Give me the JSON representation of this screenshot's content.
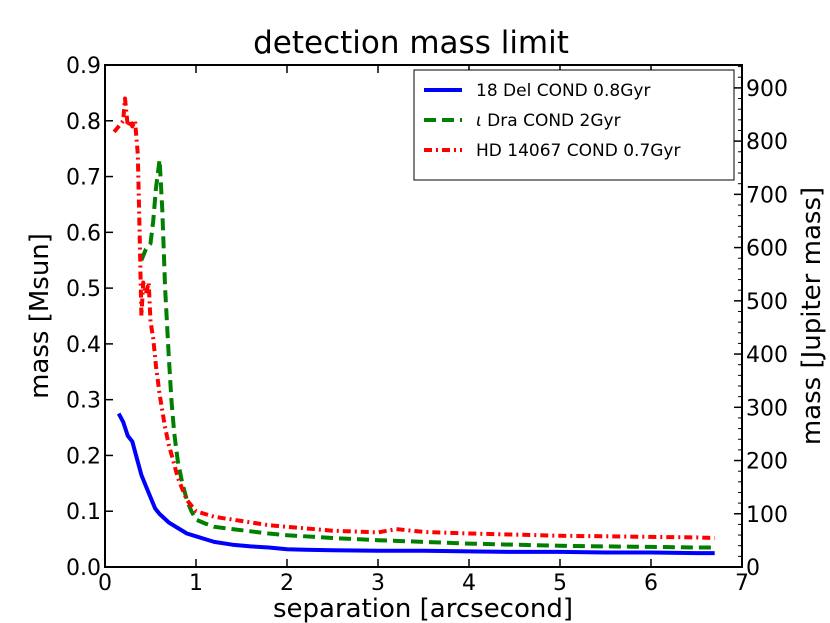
{
  "chart_data": {
    "type": "line",
    "title": "detection mass limit",
    "xlabel": "separation [arcsecond]",
    "ylabel": "mass [Msun]",
    "ylabel_right": "mass [Jupiter mass]",
    "xlim": [
      0,
      7
    ],
    "ylim": [
      0,
      0.9
    ],
    "ylim_right": [
      0,
      943
    ],
    "grid": false,
    "legend_position": "top-right",
    "x_ticks": [
      0,
      1,
      2,
      3,
      4,
      5,
      6,
      7
    ],
    "x_tick_labels": [
      "0",
      "1",
      "2",
      "3",
      "4",
      "5",
      "6",
      "7"
    ],
    "y_ticks": [
      0.0,
      0.1,
      0.2,
      0.3,
      0.4,
      0.5,
      0.6,
      0.7,
      0.8,
      0.9
    ],
    "y_tick_labels": [
      "0.0",
      "0.1",
      "0.2",
      "0.3",
      "0.4",
      "0.5",
      "0.6",
      "0.7",
      "0.8",
      "0.9"
    ],
    "y_right_ticks": [
      0,
      100,
      200,
      300,
      400,
      500,
      600,
      700,
      800,
      900
    ],
    "y_right_tick_labels": [
      "0",
      "100",
      "200",
      "300",
      "400",
      "500",
      "600",
      "700",
      "800",
      "900"
    ],
    "series": [
      {
        "name": "18 Del COND 0.8Gyr",
        "legend_prefix": "",
        "legend_rest": "18 Del COND 0.8Gyr",
        "color": "#0000ff",
        "dash": "solid",
        "x": [
          0.15,
          0.2,
          0.25,
          0.3,
          0.35,
          0.4,
          0.45,
          0.5,
          0.55,
          0.6,
          0.7,
          0.8,
          0.9,
          1.0,
          1.1,
          1.2,
          1.4,
          1.6,
          1.8,
          2.0,
          2.2,
          2.5,
          3.0,
          3.5,
          4.0,
          4.5,
          5.0,
          5.5,
          6.0,
          6.5,
          6.7
        ],
        "y": [
          0.275,
          0.26,
          0.235,
          0.225,
          0.195,
          0.165,
          0.145,
          0.125,
          0.105,
          0.095,
          0.08,
          0.07,
          0.06,
          0.055,
          0.05,
          0.045,
          0.04,
          0.037,
          0.035,
          0.032,
          0.031,
          0.03,
          0.029,
          0.029,
          0.028,
          0.027,
          0.027,
          0.026,
          0.026,
          0.025,
          0.025
        ]
      },
      {
        "name": "ι Dra COND 2Gyr",
        "legend_prefix": "ι",
        "legend_rest": " Dra COND 2Gyr",
        "color": "#007f00",
        "dash": "dashed",
        "x": [
          0.4,
          0.45,
          0.5,
          0.53,
          0.56,
          0.6,
          0.63,
          0.66,
          0.7,
          0.73,
          0.76,
          0.8,
          0.85,
          0.9,
          0.95,
          1.0,
          1.1,
          1.2,
          1.4,
          1.6,
          1.8,
          2.0,
          2.5,
          3.0,
          3.5,
          4.0,
          4.5,
          5.0,
          5.5,
          6.0,
          6.5,
          6.7
        ],
        "y": [
          0.55,
          0.57,
          0.58,
          0.62,
          0.68,
          0.73,
          0.64,
          0.5,
          0.38,
          0.3,
          0.24,
          0.19,
          0.15,
          0.12,
          0.1,
          0.085,
          0.078,
          0.072,
          0.068,
          0.064,
          0.06,
          0.057,
          0.052,
          0.048,
          0.045,
          0.042,
          0.04,
          0.038,
          0.037,
          0.036,
          0.035,
          0.035
        ]
      },
      {
        "name": "HD 14067 COND 0.7Gyr",
        "legend_prefix": "",
        "legend_rest": "HD 14067 COND 0.7Gyr",
        "color": "#ff0000",
        "dash": "dashdot",
        "x": [
          0.1,
          0.15,
          0.2,
          0.22,
          0.25,
          0.28,
          0.3,
          0.33,
          0.36,
          0.38,
          0.4,
          0.42,
          0.45,
          0.48,
          0.5,
          0.53,
          0.56,
          0.6,
          0.63,
          0.66,
          0.7,
          0.75,
          0.8,
          0.85,
          0.9,
          1.0,
          1.1,
          1.2,
          1.4,
          1.6,
          1.8,
          2.0,
          2.5,
          3.0,
          3.2,
          3.5,
          4.0,
          4.5,
          5.0,
          5.5,
          6.0,
          6.5,
          6.7
        ],
        "y": [
          0.78,
          0.79,
          0.8,
          0.84,
          0.79,
          0.8,
          0.79,
          0.8,
          0.74,
          0.6,
          0.45,
          0.51,
          0.49,
          0.51,
          0.44,
          0.41,
          0.36,
          0.31,
          0.28,
          0.25,
          0.22,
          0.19,
          0.16,
          0.14,
          0.12,
          0.1,
          0.095,
          0.09,
          0.085,
          0.08,
          0.075,
          0.072,
          0.065,
          0.062,
          0.068,
          0.063,
          0.06,
          0.058,
          0.056,
          0.055,
          0.054,
          0.053,
          0.052
        ]
      }
    ]
  }
}
